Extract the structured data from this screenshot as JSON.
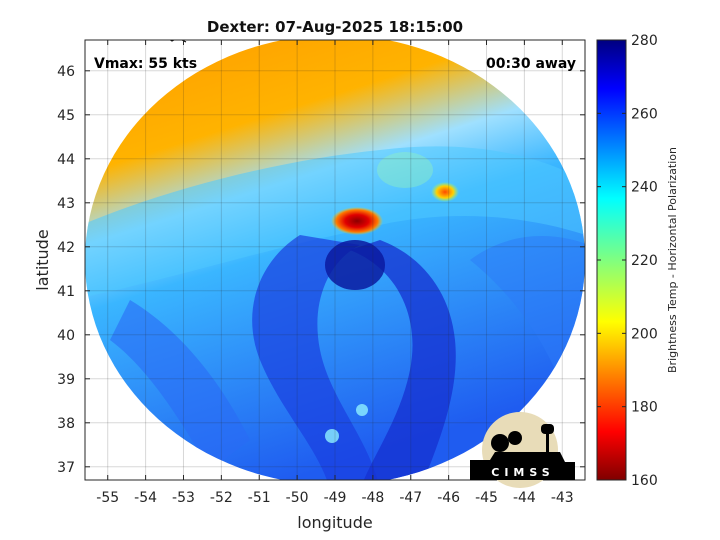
{
  "chart_data": {
    "type": "heatmap",
    "title": "Dexter: 07-Aug-2025 18:15:00",
    "xlabel": "longitude",
    "ylabel": "latitude",
    "xlim": [
      -55.6,
      -42.4
    ],
    "ylim": [
      36.7,
      46.7
    ],
    "x_ticks": [
      -55,
      -54,
      -53,
      -52,
      -51,
      -50,
      -49,
      -48,
      -47,
      -46,
      -45,
      -44,
      -43
    ],
    "y_ticks": [
      37,
      38,
      39,
      40,
      41,
      42,
      43,
      44,
      45,
      46
    ],
    "grid": true,
    "annotations": {
      "vmax": "Vmax: 55 kts",
      "away": "00:30 away"
    },
    "colorbar": {
      "label": "Brightness Temp - Horizontal Polarization",
      "min": 160,
      "max": 280,
      "ticks": [
        160,
        180,
        200,
        220,
        240,
        260,
        280
      ],
      "colormap": "jet"
    },
    "features": [
      {
        "name": "cold convective core",
        "lon": -48.2,
        "lat": 42.6,
        "value": 172
      },
      {
        "name": "secondary cold spot",
        "lon": -46.1,
        "lat": 43.3,
        "value": 190
      },
      {
        "name": "warm ocean background north",
        "lon": -50.0,
        "lat": 45.0,
        "value": 205
      },
      {
        "name": "spiral rain band",
        "lon": -48.5,
        "lat": 39.5,
        "value": 262
      }
    ],
    "logo": "CIMSS"
  }
}
